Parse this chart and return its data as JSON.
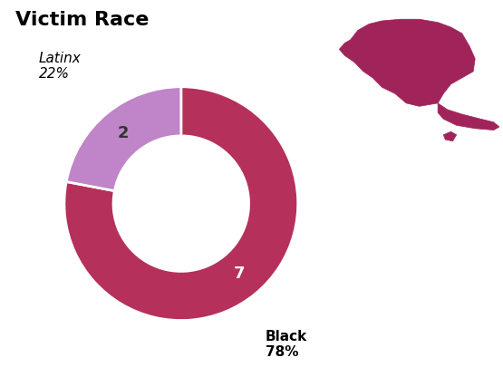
{
  "title": "Victim Race",
  "slices": [
    78,
    22
  ],
  "labels": [
    "Black",
    "Latinx"
  ],
  "counts": [
    "7",
    "2"
  ],
  "percentages": [
    "78%",
    "22%"
  ],
  "colors": [
    "#b5305a",
    "#c084c8"
  ],
  "background_color": "#ffffff",
  "title_fontsize": 16,
  "label_fontsize": 11,
  "count_fontsize": 12,
  "startangle": 90,
  "ny_color": "#a0245a"
}
